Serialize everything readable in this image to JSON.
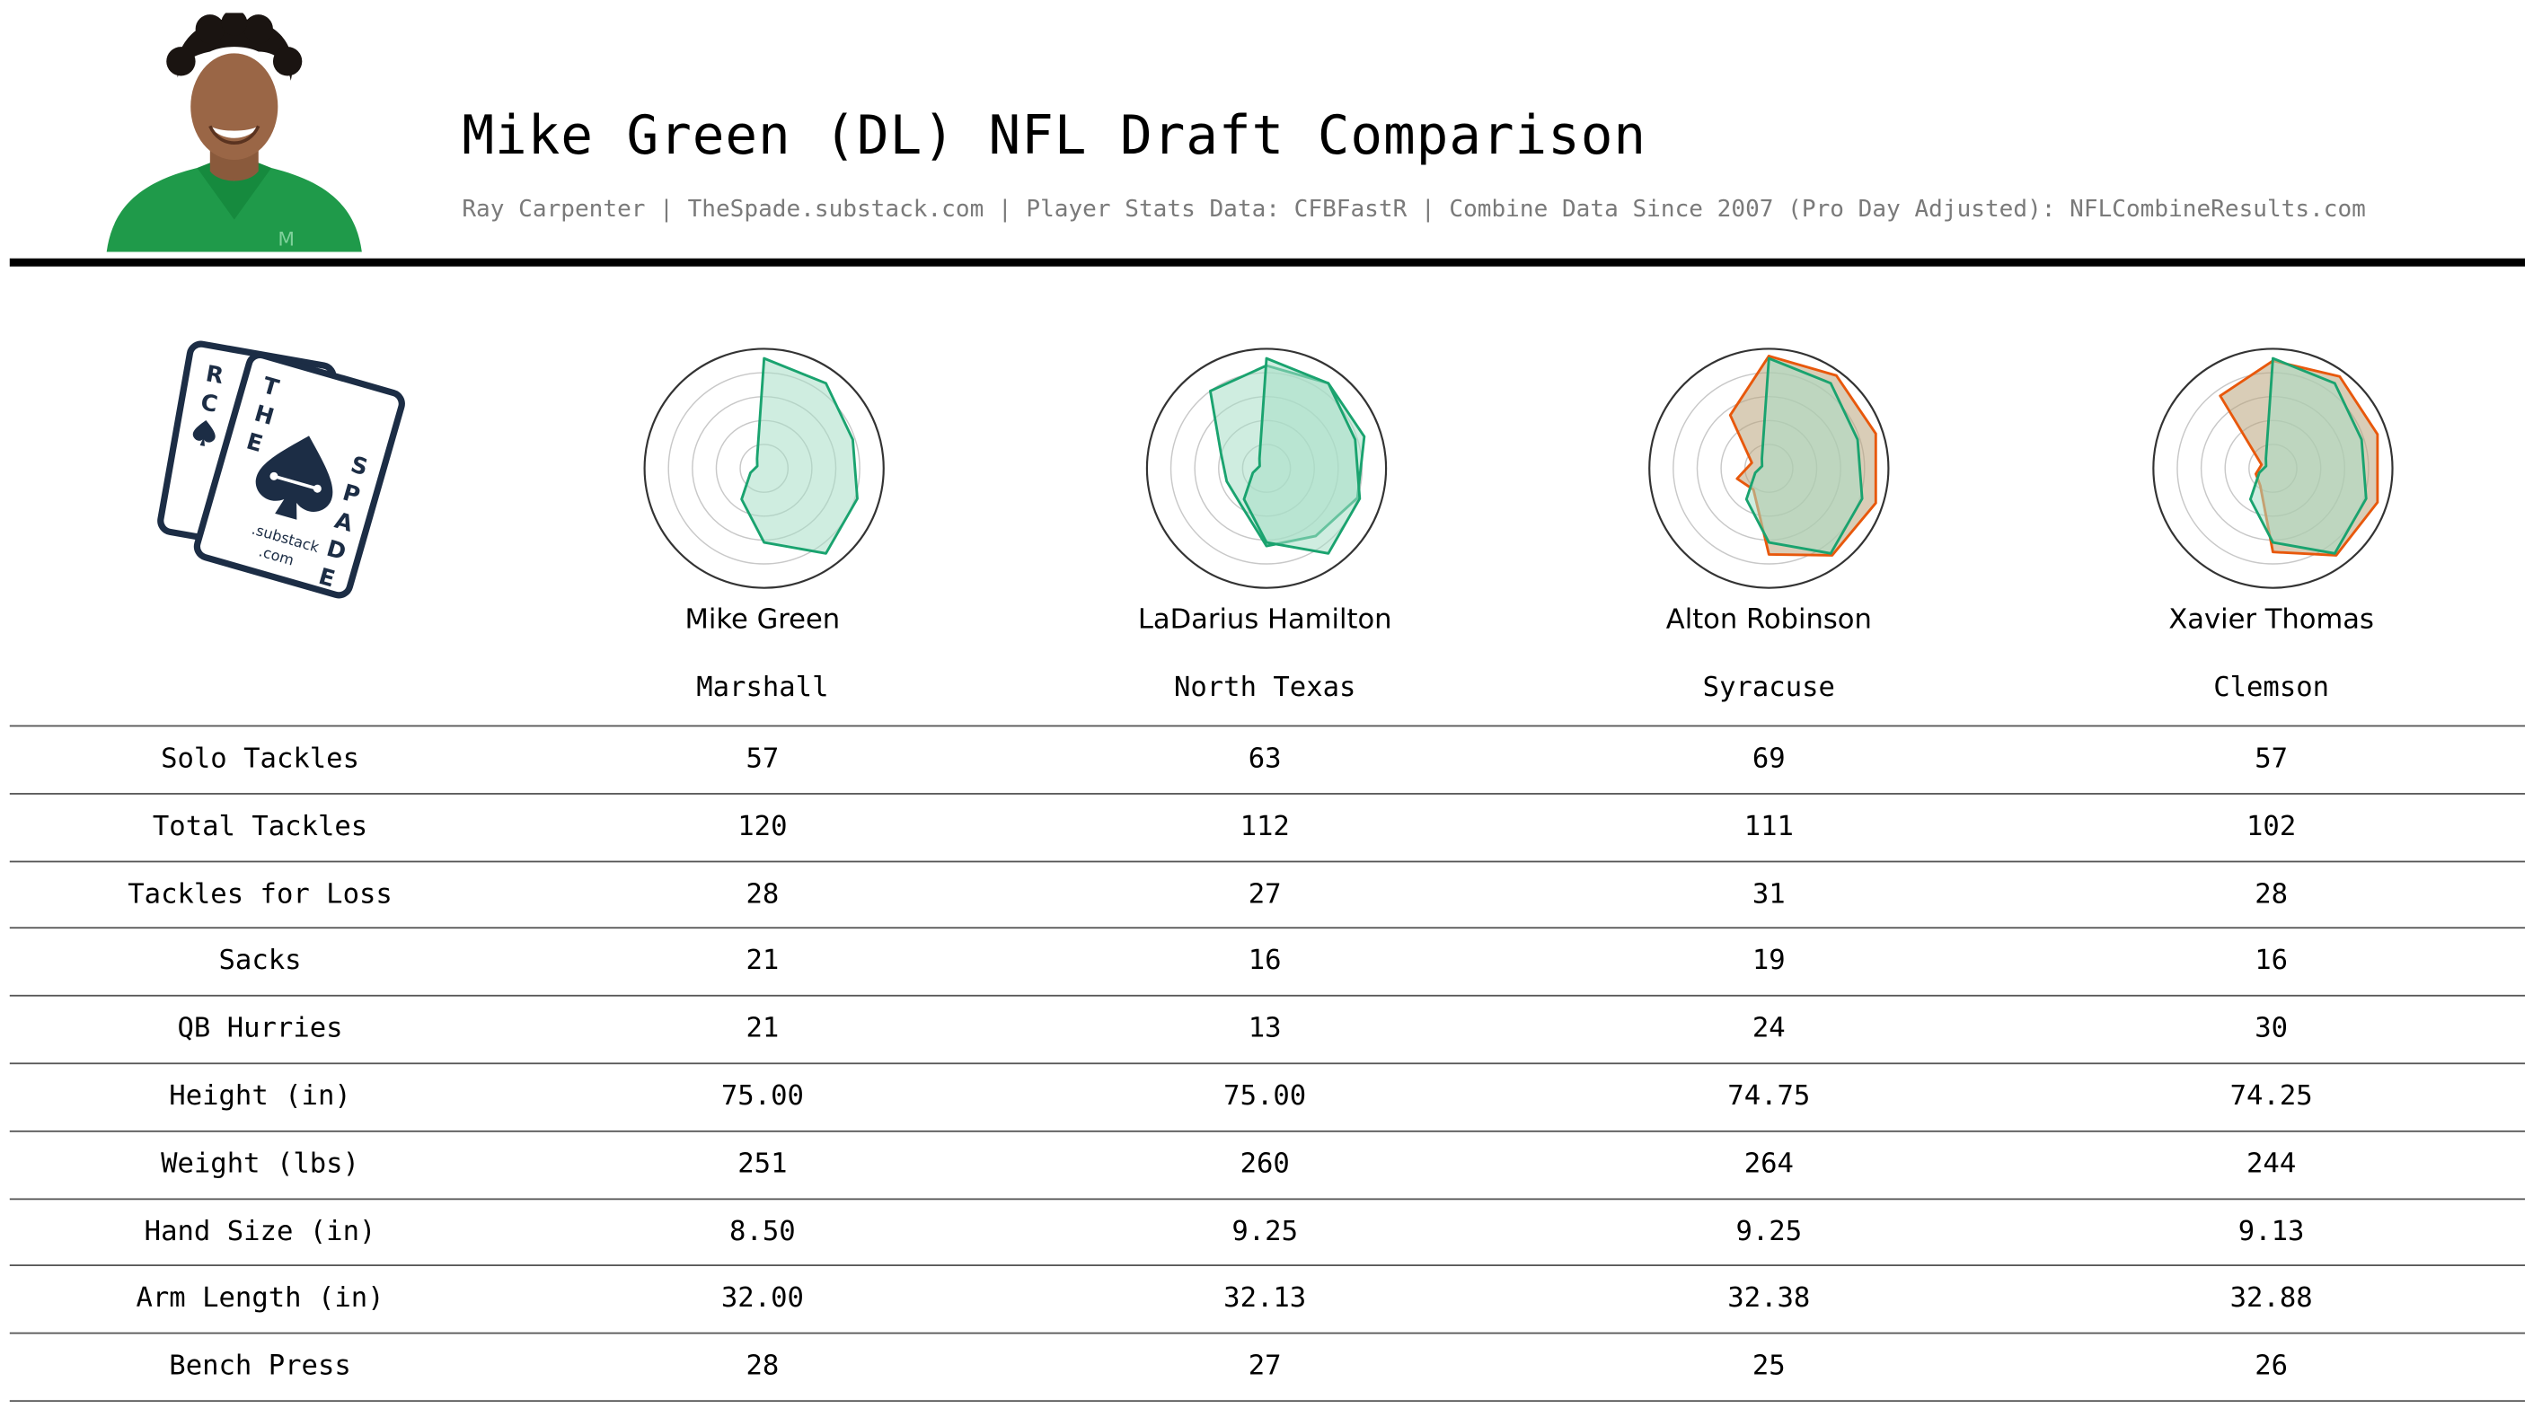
{
  "header": {
    "title": "Mike Green (DL) NFL Draft Comparison",
    "subtitle": "Ray Carpenter | TheSpade.substack.com | Player Stats Data: CFBFastR | Combine Data Since 2007 (Pro Day Adjusted): NFLCombineResults.com"
  },
  "logo": {
    "text": "THE SPADE",
    "card_letters": [
      "R",
      "C",
      "T",
      "H",
      "E",
      "S",
      "P",
      "A",
      "D",
      "E"
    ],
    "domain_line1": ".substack",
    "domain_line2": ".com"
  },
  "colors": {
    "primary_green": "#1aa36f",
    "primary_fill": "#a7dfc6",
    "comparison_orange": "#e8580c",
    "comparison_fill": "#b9a47c",
    "grid": "#c8c8c8",
    "rule": "#000000"
  },
  "players": [
    {
      "name": "Mike Green",
      "school": "Marshall"
    },
    {
      "name": "LaDarius Hamilton",
      "school": "North Texas"
    },
    {
      "name": "Alton Robinson",
      "school": "Syracuse"
    },
    {
      "name": "Xavier Thomas",
      "school": "Clemson"
    }
  ],
  "stats": [
    {
      "label": "Solo Tackles",
      "values": [
        "57",
        "63",
        "69",
        "57"
      ]
    },
    {
      "label": "Total Tackles",
      "values": [
        "120",
        "112",
        "111",
        "102"
      ]
    },
    {
      "label": "Tackles for Loss",
      "values": [
        "28",
        "27",
        "31",
        "28"
      ]
    },
    {
      "label": "Sacks",
      "values": [
        "21",
        "16",
        "19",
        "16"
      ]
    },
    {
      "label": "QB Hurries",
      "values": [
        "21",
        "13",
        "24",
        "30"
      ]
    },
    {
      "label": "Height (in)",
      "values": [
        "75.00",
        "75.00",
        "74.75",
        "74.25"
      ]
    },
    {
      "label": "Weight (lbs)",
      "values": [
        "251",
        "260",
        "264",
        "244"
      ]
    },
    {
      "label": "Hand Size (in)",
      "values": [
        "8.50",
        "9.25",
        "9.25",
        "9.13"
      ]
    },
    {
      "label": "Arm Length (in)",
      "values": [
        "32.00",
        "32.13",
        "32.38",
        "32.88"
      ]
    },
    {
      "label": "Bench Press",
      "values": [
        "28",
        "27",
        "25",
        "26"
      ]
    }
  ],
  "chart_data": {
    "type": "radar",
    "axes_count": 10,
    "rlim": [
      0,
      100
    ],
    "grid": true,
    "rings": 5,
    "series_reference": "Mike Green",
    "radars": [
      {
        "player": "Mike Green",
        "series": [
          {
            "color": "#1aa36f",
            "fill": "#a7dfc6",
            "values": [
              92,
              88,
              78,
              82,
              88,
              62,
              32,
              12,
              6,
              10
            ]
          }
        ]
      },
      {
        "player": "LaDarius Hamilton",
        "series": [
          {
            "color": "#1aa36f",
            "fill": "#a7dfc6",
            "values": [
              92,
              88,
              78,
              82,
              88,
              62,
              32,
              12,
              6,
              10
            ]
          },
          {
            "color": "#1aa36f",
            "fill": "#a7dfc6",
            "values": [
              86,
              88,
              86,
              80,
              70,
              65,
              37,
              35,
              40,
              80
            ]
          }
        ]
      },
      {
        "player": "Alton Robinson",
        "series": [
          {
            "color": "#1aa36f",
            "fill": "#a7dfc6",
            "values": [
              92,
              88,
              78,
              82,
              88,
              62,
              32,
              12,
              6,
              10
            ]
          },
          {
            "color": "#e8580c",
            "fill": "#b9a47c",
            "values": [
              94,
              96,
              94,
              94,
              90,
              72,
              22,
              28,
              15,
              55
            ]
          }
        ]
      },
      {
        "player": "Xavier Thomas",
        "series": [
          {
            "color": "#1aa36f",
            "fill": "#a7dfc6",
            "values": [
              92,
              88,
              78,
              82,
              88,
              62,
              32,
              12,
              6,
              10
            ]
          },
          {
            "color": "#e8580c",
            "fill": "#b9a47c",
            "values": [
              90,
              95,
              92,
              92,
              90,
              70,
              18,
              15,
              10,
              75
            ]
          }
        ]
      }
    ]
  }
}
